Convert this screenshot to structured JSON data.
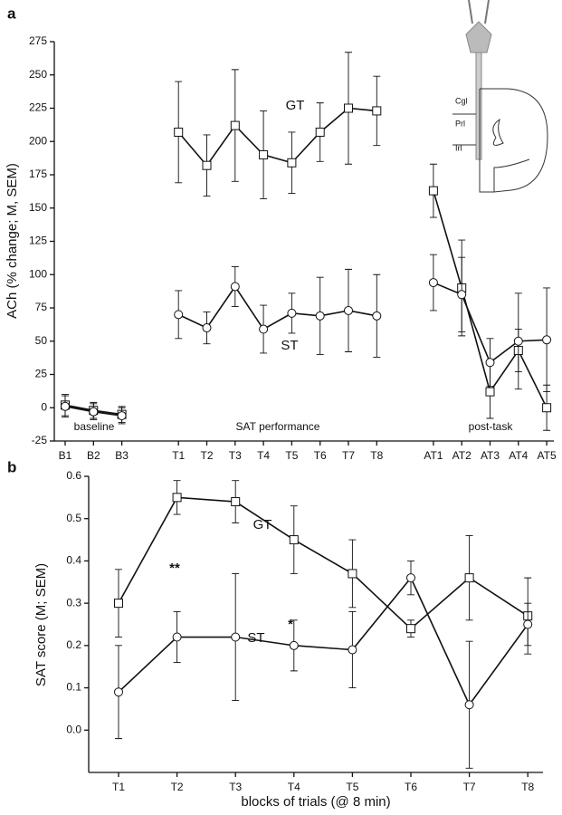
{
  "chart_data": [
    {
      "type": "line",
      "panel": "a",
      "y_label": "ACh (% change; M, SEM)",
      "categories": [
        "B1",
        "B2",
        "B3",
        null,
        "T1",
        "T2",
        "T3",
        "T4",
        "T5",
        "T6",
        "T7",
        "T8",
        null,
        "AT1",
        "AT2",
        "AT3",
        "AT4",
        "AT5"
      ],
      "ylim": [
        -25,
        275
      ],
      "yticks": [
        -25,
        0,
        25,
        50,
        75,
        100,
        125,
        150,
        175,
        200,
        225,
        250,
        275
      ],
      "series": [
        {
          "name": "GT",
          "marker": "square",
          "color": "#111",
          "values": [
            2,
            -2,
            -5,
            null,
            207,
            182,
            212,
            190,
            184,
            207,
            225,
            223,
            null,
            163,
            90,
            12,
            43,
            0
          ],
          "errors": [
            8,
            6,
            6,
            null,
            38,
            23,
            42,
            33,
            23,
            22,
            42,
            26,
            null,
            20,
            36,
            20,
            16,
            17
          ]
        },
        {
          "name": "ST",
          "marker": "circle",
          "color": "#111",
          "values": [
            1,
            -3,
            -6,
            null,
            70,
            60,
            91,
            59,
            71,
            69,
            73,
            69,
            null,
            94,
            85,
            34,
            50,
            51
          ],
          "errors": [
            8,
            6,
            6,
            null,
            18,
            12,
            15,
            18,
            15,
            29,
            31,
            31,
            null,
            21,
            28,
            18,
            36,
            39
          ]
        }
      ],
      "annotations": [
        "baseline",
        "SAT performance",
        "post-task"
      ],
      "inset_labels": [
        "Cgl",
        "Prl",
        "Irl"
      ]
    },
    {
      "type": "line",
      "panel": "b",
      "y_label": "SAT score (M; SEM)",
      "x_label": "blocks of trials (@ 8 min)",
      "categories": [
        "T1",
        "T2",
        "T3",
        "T4",
        "T5",
        "T6",
        "T7",
        "T8"
      ],
      "ylim": [
        -0.1,
        0.6
      ],
      "yticks": [
        {
          "value": 0,
          "label": "0.0"
        },
        0.1,
        0.2,
        0.3,
        0.4,
        0.5,
        0.6
      ],
      "series": [
        {
          "name": "GT",
          "marker": "square",
          "color": "#111",
          "values": [
            0.3,
            0.55,
            0.54,
            0.45,
            0.37,
            0.24,
            0.36,
            0.27
          ],
          "errors": [
            0.08,
            0.04,
            0.05,
            0.08,
            0.08,
            0.02,
            0.1,
            0.09
          ]
        },
        {
          "name": "ST",
          "marker": "circle",
          "color": "#111",
          "values": [
            0.09,
            0.22,
            0.22,
            0.2,
            0.19,
            0.36,
            0.06,
            0.25
          ],
          "errors": [
            0.11,
            0.06,
            0.15,
            0.06,
            0.09,
            0.04,
            0.15,
            0.05
          ]
        }
      ],
      "annotations": [
        "**",
        "*"
      ]
    }
  ]
}
